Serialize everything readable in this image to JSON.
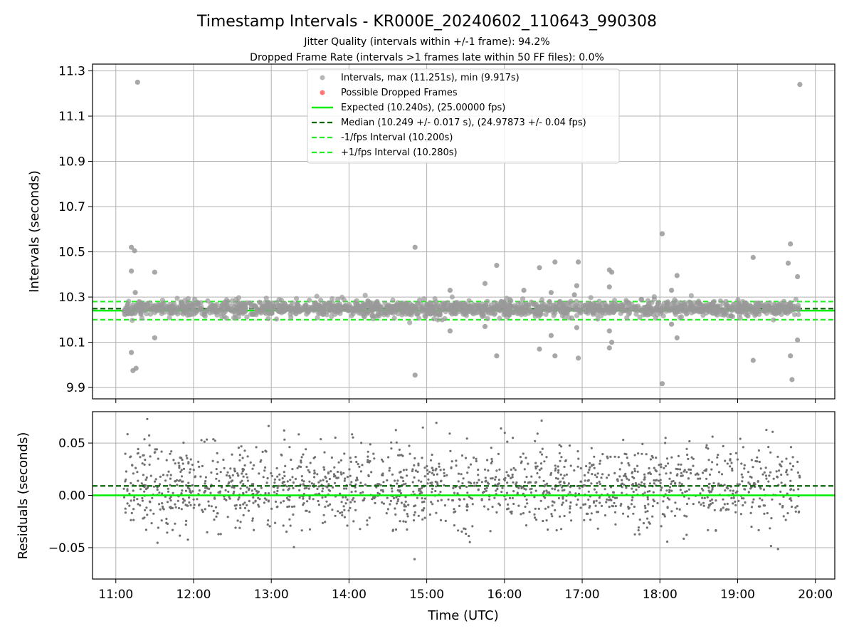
{
  "title": "Timestamp Intervals - KR000E_20240602_110643_990308",
  "subtitle1": "Jitter Quality (intervals within +/-1 frame): 94.2%",
  "subtitle2": "Dropped Frame Rate (intervals >1 frames late within 50 FF files): 0.0%",
  "colors": {
    "intervals": "#999999",
    "dropped": "#ff5555",
    "expected": "#00ee00",
    "median": "#006400",
    "fps_interval": "#22ee22",
    "residuals": "#707070",
    "grid": "#b0b0b0"
  },
  "legend": {
    "placement": "top-center",
    "entries": [
      "Intervals, max (11.251s), min (9.917s)",
      "Possible Dropped Frames",
      "Expected (10.240s), (25.00000 fps)",
      "Median (10.249 +/- 0.017 s), (24.97873 +/- 0.04 fps)",
      "-1/fps Interval (10.200s)",
      "+1/fps Interval (10.280s)"
    ]
  },
  "chart_data": [
    {
      "type": "scatter",
      "panel": "top",
      "ylabel": "Intervals (seconds)",
      "xlim_hours": [
        10.7,
        20.25
      ],
      "ylim": [
        9.85,
        11.33
      ],
      "x_ticks": [
        "11:00",
        "12:00",
        "13:00",
        "14:00",
        "15:00",
        "16:00",
        "17:00",
        "18:00",
        "19:00",
        "20:00"
      ],
      "y_ticks": [
        "9.9",
        "10.1",
        "10.3",
        "10.5",
        "10.7",
        "10.9",
        "11.1",
        "11.3"
      ],
      "grid": true,
      "lines": {
        "expected": 10.24,
        "median": 10.249,
        "minus_fps": 10.2,
        "plus_fps": 10.28
      },
      "band": {
        "count": 1700,
        "x_range_hours": [
          11.1,
          19.8
        ],
        "center": 10.249,
        "spread": 0.017
      },
      "outliers": [
        [
          11.2,
          10.52
        ],
        [
          11.24,
          10.505
        ],
        [
          11.2,
          10.415
        ],
        [
          11.25,
          10.32
        ],
        [
          11.28,
          11.25
        ],
        [
          11.2,
          10.055
        ],
        [
          11.22,
          9.975
        ],
        [
          11.26,
          9.985
        ],
        [
          11.5,
          10.41
        ],
        [
          11.5,
          10.12
        ],
        [
          14.85,
          10.52
        ],
        [
          14.85,
          9.955
        ],
        [
          15.3,
          10.33
        ],
        [
          15.3,
          10.15
        ],
        [
          15.75,
          10.36
        ],
        [
          15.75,
          10.17
        ],
        [
          15.9,
          10.44
        ],
        [
          15.9,
          10.04
        ],
        [
          16.25,
          10.33
        ],
        [
          16.45,
          10.43
        ],
        [
          16.45,
          10.07
        ],
        [
          16.6,
          10.32
        ],
        [
          16.6,
          10.13
        ],
        [
          16.65,
          10.455
        ],
        [
          16.65,
          10.04
        ],
        [
          16.9,
          10.31
        ],
        [
          16.95,
          10.455
        ],
        [
          16.93,
          10.35
        ],
        [
          16.93,
          10.165
        ],
        [
          16.95,
          10.03
        ],
        [
          17.35,
          10.42
        ],
        [
          17.38,
          10.41
        ],
        [
          17.35,
          10.15
        ],
        [
          17.38,
          10.1
        ],
        [
          17.35,
          10.075
        ],
        [
          17.35,
          10.345
        ],
        [
          18.03,
          10.58
        ],
        [
          18.03,
          9.917
        ],
        [
          18.15,
          10.33
        ],
        [
          18.22,
          10.395
        ],
        [
          18.15,
          10.18
        ],
        [
          18.22,
          10.12
        ],
        [
          19.2,
          10.475
        ],
        [
          19.2,
          10.02
        ],
        [
          19.65,
          10.45
        ],
        [
          19.68,
          10.535
        ],
        [
          19.68,
          10.04
        ],
        [
          19.7,
          9.935
        ],
        [
          19.77,
          10.39
        ],
        [
          19.77,
          10.11
        ],
        [
          19.8,
          11.24
        ]
      ]
    },
    {
      "type": "scatter",
      "panel": "bottom",
      "xlabel": "Time (UTC)",
      "ylabel": "Residuals (seconds)",
      "xlim_hours": [
        10.7,
        20.25
      ],
      "ylim": [
        -0.08,
        0.08
      ],
      "x_ticks": [
        "11:00",
        "12:00",
        "13:00",
        "14:00",
        "15:00",
        "16:00",
        "17:00",
        "18:00",
        "19:00",
        "20:00"
      ],
      "y_ticks": [
        "0.05",
        "0.00",
        "−0.05"
      ],
      "grid": true,
      "lines": {
        "expected": 0.0,
        "median": 0.009
      },
      "band": {
        "count": 1700,
        "x_range_hours": [
          11.1,
          19.8
        ],
        "center": 0.009,
        "spread": 0.02
      }
    }
  ]
}
